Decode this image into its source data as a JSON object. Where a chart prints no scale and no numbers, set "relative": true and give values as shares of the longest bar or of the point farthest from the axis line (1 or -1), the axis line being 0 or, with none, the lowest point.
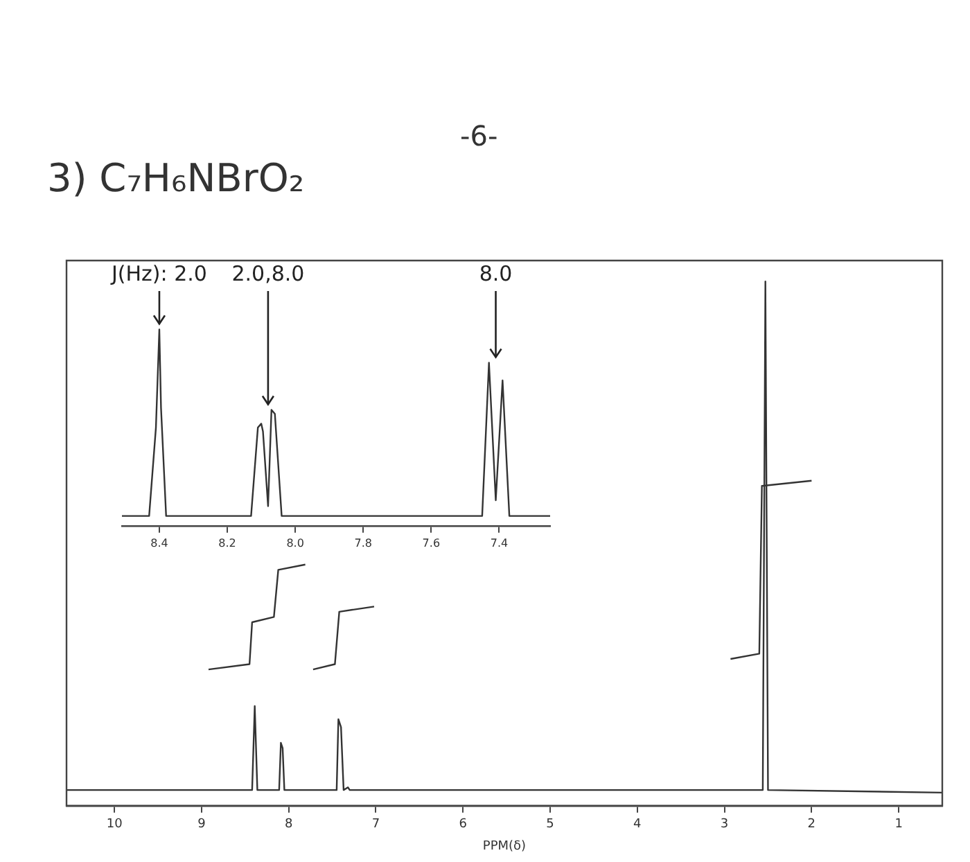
{
  "chart_data": [
    {
      "type": "line",
      "title": "3) C₇H₆NBrO₂",
      "xlabel": "PPM(δ)",
      "relative": true,
      "xlim": [
        10.55,
        0.5
      ],
      "xticks": [
        10,
        9,
        8,
        7,
        6,
        5,
        4,
        3,
        2,
        1
      ],
      "grid": false,
      "legend": false,
      "marker": "none",
      "line_style": "solid",
      "annotations": [
        "-6-"
      ],
      "series": [
        {
          "color": "#333333",
          "x": [
            10.55,
            8.42,
            8.39,
            8.36,
            8.11,
            8.09,
            8.07,
            8.05,
            7.45,
            7.43,
            7.4,
            7.37,
            7.32,
            7.3,
            2.56,
            2.53,
            2.5,
            0.5
          ],
          "values": [
            0.03,
            0.03,
            0.19,
            0.03,
            0.03,
            0.12,
            0.11,
            0.03,
            0.03,
            0.165,
            0.15,
            0.03,
            0.035,
            0.03,
            0.03,
            1,
            0.03,
            0.025
          ]
        },
        {
          "color": "#333333",
          "x": [
            8.92,
            8.45,
            8.42,
            8.17,
            8.12,
            7.81
          ],
          "values": [
            0.26,
            0.27,
            0.35,
            0.36,
            0.45,
            0.46
          ]
        },
        {
          "color": "#333333",
          "x": [
            7.72,
            7.47,
            7.42,
            7.02
          ],
          "values": [
            0.26,
            0.27,
            0.37,
            0.38
          ]
        },
        {
          "color": "#333333",
          "x": [
            2.93,
            2.6,
            2.57,
            2
          ],
          "values": [
            0.28,
            0.29,
            0.61,
            0.62
          ]
        }
      ]
    },
    {
      "type": "line",
      "relative": true,
      "xlim": [
        8.51,
        7.25
      ],
      "xticks": [
        8.4,
        8.2,
        {
          "value": 8,
          "label": "8.0"
        },
        7.8,
        7.6,
        7.4
      ],
      "grid": false,
      "legend": false,
      "marker": "none",
      "line_style": "solid",
      "annotations": [
        {
          "text": "J(Hz): 2.0",
          "x": 8.4,
          "y": 1
        },
        {
          "text": "2.0,8.0",
          "x": 8.08,
          "y": 0.59
        },
        {
          "text": "8.0",
          "x": 7.41,
          "y": 0.83
        }
      ],
      "series": [
        {
          "color": "#333333",
          "x": [
            8.51,
            8.43,
            8.41,
            8.4,
            8.395,
            8.38,
            8.13,
            8.11,
            8.1,
            8.095,
            8.08,
            8.07,
            8.06,
            8.04,
            7.45,
            7.43,
            7.41,
            7.39,
            7.37,
            7.25
          ],
          "values": [
            0.05,
            0.05,
            0.5,
            1,
            0.6,
            0.05,
            0.05,
            0.5,
            0.52,
            0.48,
            0.1,
            0.59,
            0.57,
            0.05,
            0.05,
            0.83,
            0.13,
            0.74,
            0.05,
            0.05
          ]
        }
      ]
    }
  ]
}
